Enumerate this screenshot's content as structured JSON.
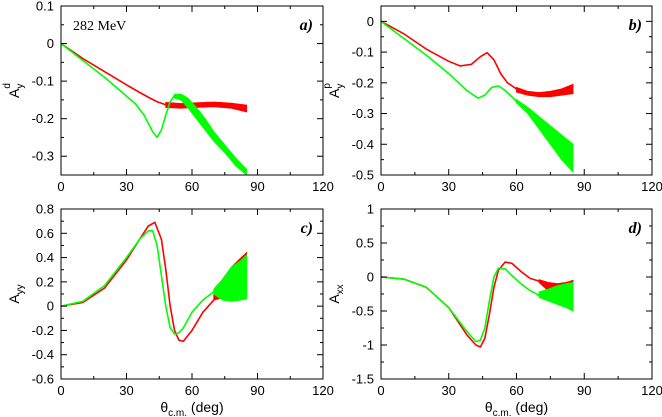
{
  "chart_data": [
    {
      "type": "line",
      "panel_tag": "a)",
      "annotation": "282 MeV",
      "ylabel": {
        "main": "A",
        "sub": "y",
        "sup": "d"
      },
      "xlim": [
        0,
        120
      ],
      "ylim": [
        -0.35,
        0.1
      ],
      "xticks": [
        0,
        30,
        60,
        90,
        120
      ],
      "yticks": [
        0.1,
        0,
        -0.1,
        -0.2,
        -0.3
      ],
      "ytick_labels": [
        "0.1",
        "0",
        "-0.1",
        "-0.2",
        "-0.3"
      ],
      "series": [
        {
          "name": "red-curve",
          "color": "#ff0000",
          "kind": "line",
          "x": [
            0,
            10,
            20,
            30,
            36,
            40,
            44,
            48
          ],
          "y": [
            0,
            -0.04,
            -0.075,
            -0.11,
            -0.13,
            -0.143,
            -0.155,
            -0.163
          ]
        },
        {
          "name": "red-band",
          "color": "#ff0000",
          "kind": "band",
          "x": [
            48,
            55,
            62,
            70,
            78,
            85
          ],
          "ylow": [
            -0.17,
            -0.172,
            -0.17,
            -0.168,
            -0.172,
            -0.182
          ],
          "yhigh": [
            -0.157,
            -0.16,
            -0.158,
            -0.156,
            -0.159,
            -0.164
          ]
        },
        {
          "name": "green-curve",
          "color": "#00ff00",
          "kind": "line",
          "x": [
            0,
            10,
            20,
            28,
            34,
            38,
            42,
            44,
            46,
            48,
            50,
            52
          ],
          "y": [
            0,
            -0.045,
            -0.09,
            -0.13,
            -0.16,
            -0.19,
            -0.235,
            -0.25,
            -0.23,
            -0.19,
            -0.155,
            -0.138
          ]
        },
        {
          "name": "green-band",
          "color": "#00ff00",
          "kind": "band",
          "x": [
            52,
            55,
            58,
            62,
            66,
            70,
            75,
            80,
            85
          ],
          "ylow": [
            -0.145,
            -0.15,
            -0.17,
            -0.2,
            -0.23,
            -0.26,
            -0.29,
            -0.325,
            -0.35
          ],
          "yhigh": [
            -0.135,
            -0.135,
            -0.145,
            -0.17,
            -0.2,
            -0.235,
            -0.27,
            -0.305,
            -0.335
          ]
        }
      ]
    },
    {
      "type": "line",
      "panel_tag": "b)",
      "ylabel": {
        "main": "A",
        "sub": "y",
        "sup": "p"
      },
      "xlim": [
        0,
        120
      ],
      "ylim": [
        -0.5,
        0.05
      ],
      "xticks": [
        0,
        30,
        60,
        90,
        120
      ],
      "yticks": [
        0,
        -0.1,
        -0.2,
        -0.3,
        -0.4,
        -0.5
      ],
      "ytick_labels": [
        "0",
        "-0.1",
        "-0.2",
        "-0.3",
        "-0.4",
        "-0.5"
      ],
      "series": [
        {
          "name": "red-curve",
          "color": "#ff0000",
          "kind": "line",
          "x": [
            0,
            10,
            20,
            30,
            35,
            40,
            44,
            47,
            50,
            53,
            56,
            60
          ],
          "y": [
            0,
            -0.04,
            -0.09,
            -0.13,
            -0.145,
            -0.14,
            -0.115,
            -0.102,
            -0.125,
            -0.17,
            -0.2,
            -0.22
          ]
        },
        {
          "name": "red-band",
          "color": "#ff0000",
          "kind": "band",
          "x": [
            60,
            65,
            70,
            75,
            80,
            85
          ],
          "ylow": [
            -0.23,
            -0.24,
            -0.245,
            -0.245,
            -0.24,
            -0.235
          ],
          "yhigh": [
            -0.215,
            -0.228,
            -0.232,
            -0.228,
            -0.22,
            -0.205
          ]
        },
        {
          "name": "green-curve",
          "color": "#00ff00",
          "kind": "line",
          "x": [
            0,
            10,
            20,
            30,
            38,
            43,
            46,
            49,
            52,
            55,
            60
          ],
          "y": [
            0,
            -0.055,
            -0.11,
            -0.17,
            -0.225,
            -0.25,
            -0.24,
            -0.215,
            -0.21,
            -0.225,
            -0.26
          ]
        },
        {
          "name": "green-band",
          "color": "#00ff00",
          "kind": "band",
          "x": [
            60,
            65,
            70,
            75,
            80,
            85
          ],
          "ylow": [
            -0.265,
            -0.3,
            -0.35,
            -0.4,
            -0.45,
            -0.49
          ],
          "yhigh": [
            -0.255,
            -0.28,
            -0.31,
            -0.34,
            -0.37,
            -0.4
          ]
        }
      ]
    },
    {
      "type": "line",
      "panel_tag": "c)",
      "ylabel": {
        "main": "A",
        "sub": "yy",
        "sup": ""
      },
      "xlim": [
        0,
        120
      ],
      "ylim": [
        -0.6,
        0.8
      ],
      "xticks": [
        0,
        30,
        60,
        90,
        120
      ],
      "yticks": [
        0.8,
        0.6,
        0.4,
        0.2,
        0,
        -0.2,
        -0.4,
        -0.6
      ],
      "ytick_labels": [
        "0.8",
        "0.6",
        "0.4",
        "0.2",
        "0",
        "-0.2",
        "-0.4",
        "-0.6"
      ],
      "series": [
        {
          "name": "red-curve",
          "color": "#ff0000",
          "kind": "line",
          "x": [
            0,
            10,
            20,
            30,
            36,
            40,
            43,
            46,
            48,
            50,
            52,
            54,
            56,
            60,
            65,
            70
          ],
          "y": [
            0,
            0.03,
            0.15,
            0.38,
            0.55,
            0.66,
            0.69,
            0.55,
            0.3,
            0.0,
            -0.2,
            -0.28,
            -0.29,
            -0.2,
            -0.05,
            0.05
          ]
        },
        {
          "name": "red-band",
          "color": "#ff0000",
          "kind": "band",
          "x": [
            70,
            74,
            78,
            82,
            85
          ],
          "ylow": [
            0.05,
            0.07,
            0.08,
            0.08,
            0.08
          ],
          "yhigh": [
            0.1,
            0.22,
            0.32,
            0.39,
            0.44
          ]
        },
        {
          "name": "green-curve",
          "color": "#00ff00",
          "kind": "line",
          "x": [
            0,
            10,
            20,
            30,
            36,
            40,
            42,
            44,
            46,
            48,
            50,
            52,
            54,
            56,
            60,
            65,
            70
          ],
          "y": [
            0,
            0.04,
            0.17,
            0.4,
            0.55,
            0.62,
            0.62,
            0.5,
            0.25,
            0.0,
            -0.18,
            -0.23,
            -0.22,
            -0.18,
            -0.05,
            0.05,
            0.12
          ]
        },
        {
          "name": "green-band",
          "color": "#00ff00",
          "kind": "band",
          "x": [
            70,
            74,
            78,
            82,
            85
          ],
          "ylow": [
            0.1,
            0.05,
            0.04,
            0.05,
            0.06
          ],
          "yhigh": [
            0.14,
            0.22,
            0.32,
            0.37,
            0.42
          ]
        }
      ]
    },
    {
      "type": "line",
      "panel_tag": "d)",
      "ylabel": {
        "main": "A",
        "sub": "xx",
        "sup": ""
      },
      "xlim": [
        0,
        120
      ],
      "ylim": [
        -1.5,
        1
      ],
      "xticks": [
        0,
        30,
        60,
        90,
        120
      ],
      "yticks": [
        1,
        0.5,
        0,
        -0.5,
        -1,
        -1.5
      ],
      "ytick_labels": [
        "1",
        "0.5",
        "0",
        "-0.5",
        "-1",
        "-1.5"
      ],
      "series": [
        {
          "name": "red-curve",
          "color": "#ff0000",
          "kind": "line",
          "x": [
            0,
            10,
            20,
            30,
            38,
            42,
            44,
            46,
            48,
            50,
            52,
            55,
            58,
            62,
            66,
            70
          ],
          "y": [
            0,
            -0.03,
            -0.15,
            -0.45,
            -0.85,
            -1.0,
            -1.03,
            -0.9,
            -0.55,
            -0.15,
            0.1,
            0.22,
            0.2,
            0.08,
            -0.02,
            -0.06
          ]
        },
        {
          "name": "red-band",
          "color": "#ff0000",
          "kind": "band",
          "x": [
            70,
            74,
            78,
            82,
            85
          ],
          "ylow": [
            -0.08,
            -0.2,
            -0.3,
            -0.37,
            -0.42
          ],
          "yhigh": [
            -0.04,
            -0.08,
            -0.1,
            -0.08,
            -0.05
          ]
        },
        {
          "name": "green-curve",
          "color": "#00ff00",
          "kind": "line",
          "x": [
            0,
            10,
            20,
            30,
            38,
            42,
            44,
            46,
            48,
            50,
            52,
            55,
            58,
            62,
            66,
            70
          ],
          "y": [
            0,
            -0.03,
            -0.15,
            -0.45,
            -0.8,
            -0.95,
            -0.93,
            -0.75,
            -0.35,
            0.0,
            0.13,
            0.12,
            0.02,
            -0.1,
            -0.2,
            -0.27
          ]
        },
        {
          "name": "green-band",
          "color": "#00ff00",
          "kind": "band",
          "x": [
            70,
            74,
            78,
            82,
            85
          ],
          "ylow": [
            -0.3,
            -0.35,
            -0.4,
            -0.45,
            -0.5
          ],
          "yhigh": [
            -0.22,
            -0.18,
            -0.13,
            -0.1,
            -0.08
          ]
        }
      ]
    }
  ],
  "xlabel": {
    "main": "θ",
    "sub": "c.m.",
    "rest": " (deg)"
  }
}
